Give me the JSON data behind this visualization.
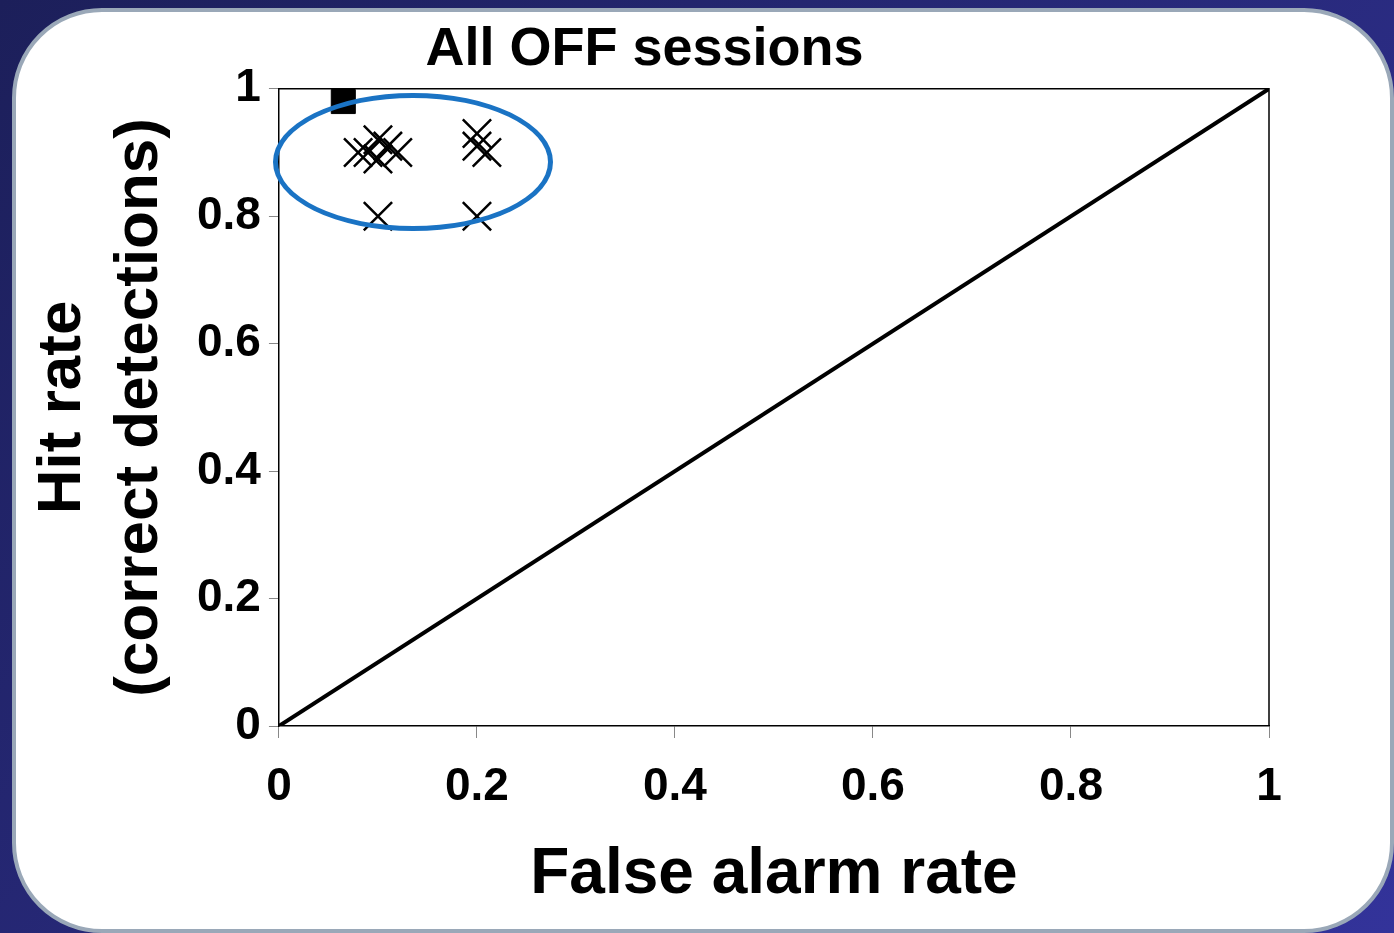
{
  "chart_data": {
    "type": "scatter",
    "title": "All OFF sessions",
    "xlabel": "False alarm rate",
    "ylabel": "Hit rate\n(correct detections)",
    "xlim": [
      0,
      1
    ],
    "xticks": [
      0,
      0.2,
      0.4,
      0.6,
      0.8,
      1
    ],
    "ylim": [
      0,
      1
    ],
    "yticks": [
      0,
      0.2,
      0.4,
      0.6,
      0.8,
      1
    ],
    "grid": false,
    "legend": false,
    "series": [
      {
        "type": "line",
        "color": "#000000",
        "marker": "none",
        "line_style": "solid",
        "x": [
          0,
          1
        ],
        "values": [
          0,
          1
        ]
      },
      {
        "type": "scatter",
        "color": "#000000",
        "marker": "square",
        "x": [
          0.065
        ],
        "values": [
          0.98
        ]
      },
      {
        "type": "scatter",
        "color": "#000000",
        "marker": "cross",
        "x": [
          0.08,
          0.09,
          0.1,
          0.1,
          0.11,
          0.12,
          0.2,
          0.2,
          0.21,
          0.1,
          0.2
        ],
        "values": [
          0.9,
          0.9,
          0.92,
          0.89,
          0.91,
          0.9,
          0.93,
          0.91,
          0.9,
          0.8,
          0.8
        ]
      }
    ]
  }
}
